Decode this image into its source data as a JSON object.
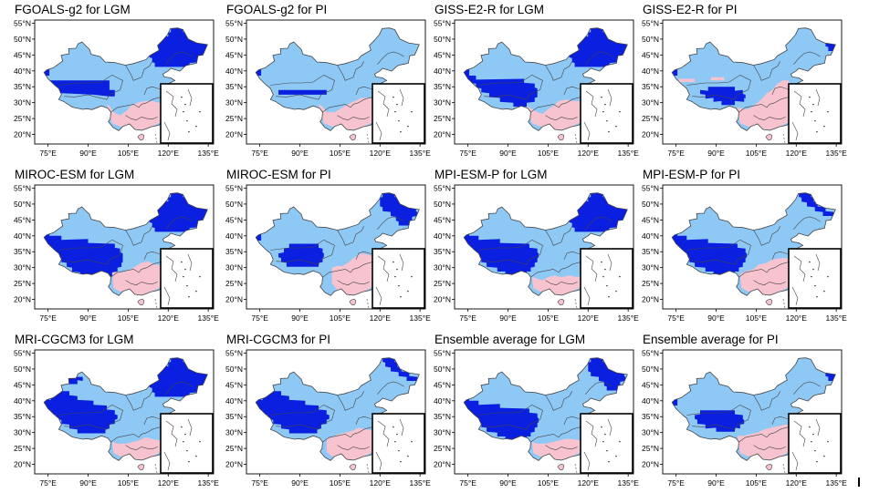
{
  "figure": {
    "lat_labels": [
      "55°N",
      "50°N",
      "45°N",
      "40°N",
      "35°N",
      "30°N",
      "25°N",
      "20°N"
    ],
    "lon_labels": [
      "75°E",
      "90°E",
      "105°E",
      "120°E",
      "135°E"
    ],
    "colors": {
      "dark_blue": "#0a1fe0",
      "light_blue": "#8ec8f5",
      "pink": "#f7c3cf",
      "border": "#444444",
      "frame": "#000000"
    },
    "panels": [
      {
        "title": "FGOALS-g2 for LGM"
      },
      {
        "title": "FGOALS-g2 for PI"
      },
      {
        "title": "GISS-E2-R for LGM"
      },
      {
        "title": "GISS-E2-R for PI"
      },
      {
        "title": "MIROC-ESM for LGM"
      },
      {
        "title": "MIROC-ESM for PI"
      },
      {
        "title": "MPI-ESM-P for LGM"
      },
      {
        "title": "MPI-ESM-P for PI"
      },
      {
        "title": "MRI-CGCM3 for LGM"
      },
      {
        "title": "MRI-CGCM3 for PI"
      },
      {
        "title": "Ensemble average for LGM"
      },
      {
        "title": "Ensemble average for PI"
      }
    ]
  }
}
